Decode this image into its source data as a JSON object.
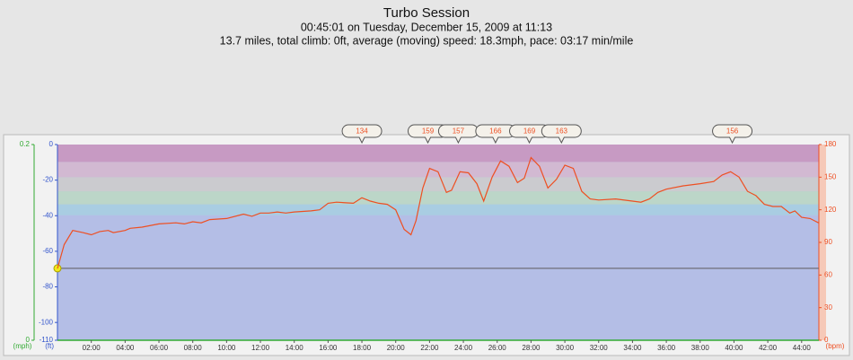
{
  "chart_data": {
    "type": "line",
    "title": "Turbo Session",
    "subtitle": [
      "00:45:01 on Tuesday, December 15, 2009 at 11:13",
      "13.7 miles, total climb: 0ft, average (moving) speed: 18.3mph, pace: 03:17 min/mile"
    ],
    "x": [
      0,
      0.4,
      0.9,
      1.5,
      2.0,
      2.5,
      3.0,
      3.3,
      4.0,
      4.3,
      5.0,
      6.0,
      7.0,
      7.5,
      8.0,
      8.5,
      9.0,
      10.0,
      11.0,
      11.5,
      12.0,
      12.5,
      13.0,
      13.5,
      14.0,
      15.0,
      15.5,
      16.0,
      16.5,
      17.5,
      18.0,
      18.5,
      19.0,
      19.5,
      20.0,
      20.5,
      20.9,
      21.2,
      21.6,
      22.0,
      22.5,
      23.0,
      23.3,
      23.8,
      24.3,
      24.8,
      25.2,
      25.7,
      26.2,
      26.7,
      27.2,
      27.6,
      28.0,
      28.5,
      29.0,
      29.5,
      30.0,
      30.5,
      31.0,
      31.5,
      32.0,
      33.0,
      34.0,
      34.5,
      35.0,
      35.5,
      36.0,
      37.0,
      38.0,
      38.8,
      39.3,
      39.8,
      40.3,
      40.8,
      41.3,
      41.8,
      42.3,
      42.8,
      43.3,
      43.6,
      44.0,
      44.5,
      45.0
    ],
    "xlim": [
      0,
      45.02
    ],
    "xticks": [
      {
        "value": 2,
        "label": "02:00"
      },
      {
        "value": 4,
        "label": "04:00"
      },
      {
        "value": 6,
        "label": "06:00"
      },
      {
        "value": 8,
        "label": "08:00"
      },
      {
        "value": 10,
        "label": "10:00"
      },
      {
        "value": 12,
        "label": "12:00"
      },
      {
        "value": 14,
        "label": "14:00"
      },
      {
        "value": 16,
        "label": "16:00"
      },
      {
        "value": 18,
        "label": "18:00"
      },
      {
        "value": 20,
        "label": "20:00"
      },
      {
        "value": 22,
        "label": "22:00"
      },
      {
        "value": 24,
        "label": "24:00"
      },
      {
        "value": 26,
        "label": "26:00"
      },
      {
        "value": 28,
        "label": "28:00"
      },
      {
        "value": 30,
        "label": "30:00"
      },
      {
        "value": 32,
        "label": "32:00"
      },
      {
        "value": 34,
        "label": "34:00"
      },
      {
        "value": 36,
        "label": "36:00"
      },
      {
        "value": 38,
        "label": "38:00"
      },
      {
        "value": 40,
        "label": "40:00"
      },
      {
        "value": 42,
        "label": "42:00"
      },
      {
        "value": 44,
        "label": "44:00"
      }
    ],
    "series": [
      {
        "color": "#6e6e78",
        "x": [
          0,
          45.02
        ],
        "values": [
          -69.6,
          -69.6
        ],
        "marker_color": "#f2ea1c"
      },
      {
        "color": "#ee4f22",
        "axis": "y2",
        "values": [
          66,
          88,
          101,
          99,
          97,
          100,
          101,
          99,
          101,
          103,
          104,
          107,
          108,
          107,
          109,
          108,
          111,
          112,
          116,
          114,
          117,
          117,
          118,
          117,
          118,
          119,
          120,
          126,
          127,
          126,
          131,
          128,
          126,
          125,
          120,
          102,
          97,
          110,
          140,
          158,
          155,
          136,
          138,
          155,
          154,
          144,
          128,
          150,
          165,
          160,
          145,
          149,
          168,
          160,
          140,
          148,
          161,
          158,
          137,
          130,
          129,
          130,
          128,
          127,
          130,
          136,
          139,
          142,
          144,
          146,
          152,
          155,
          150,
          137,
          133,
          125,
          123,
          123,
          117,
          119,
          113,
          112,
          108
        ]
      }
    ],
    "annotations": {
      "x": [
        18.0,
        21.9,
        23.7,
        25.9,
        27.9,
        29.8,
        39.9
      ],
      "values": [
        134,
        159,
        157,
        166,
        169,
        163,
        156
      ]
    },
    "ylabel": "(ft)",
    "ylim": [
      -110,
      0
    ],
    "yticks": [
      0,
      -20,
      -40,
      -60,
      -80,
      -100,
      -110
    ],
    "y2label": "(bpm)",
    "y2lim": [
      0,
      180
    ],
    "y2ticks": [
      0,
      30,
      60,
      90,
      120,
      150,
      180
    ],
    "speed_axis": {
      "label": "(mph)",
      "lim": [
        0,
        0.2
      ],
      "ticks": [
        0,
        0.2
      ]
    },
    "zones": [
      {
        "from": 115,
        "to": 125,
        "color": "#a9cde2"
      },
      {
        "from": 125,
        "to": 137,
        "color": "#bcd6c8"
      },
      {
        "from": 137,
        "to": 150,
        "color": "#cbcbcf"
      },
      {
        "from": 150,
        "to": 164,
        "color": "#d2b9d2"
      },
      {
        "from": 164,
        "to": 180,
        "color": "#c79ac3"
      }
    ],
    "zone_base_color": "#b4bee6"
  }
}
